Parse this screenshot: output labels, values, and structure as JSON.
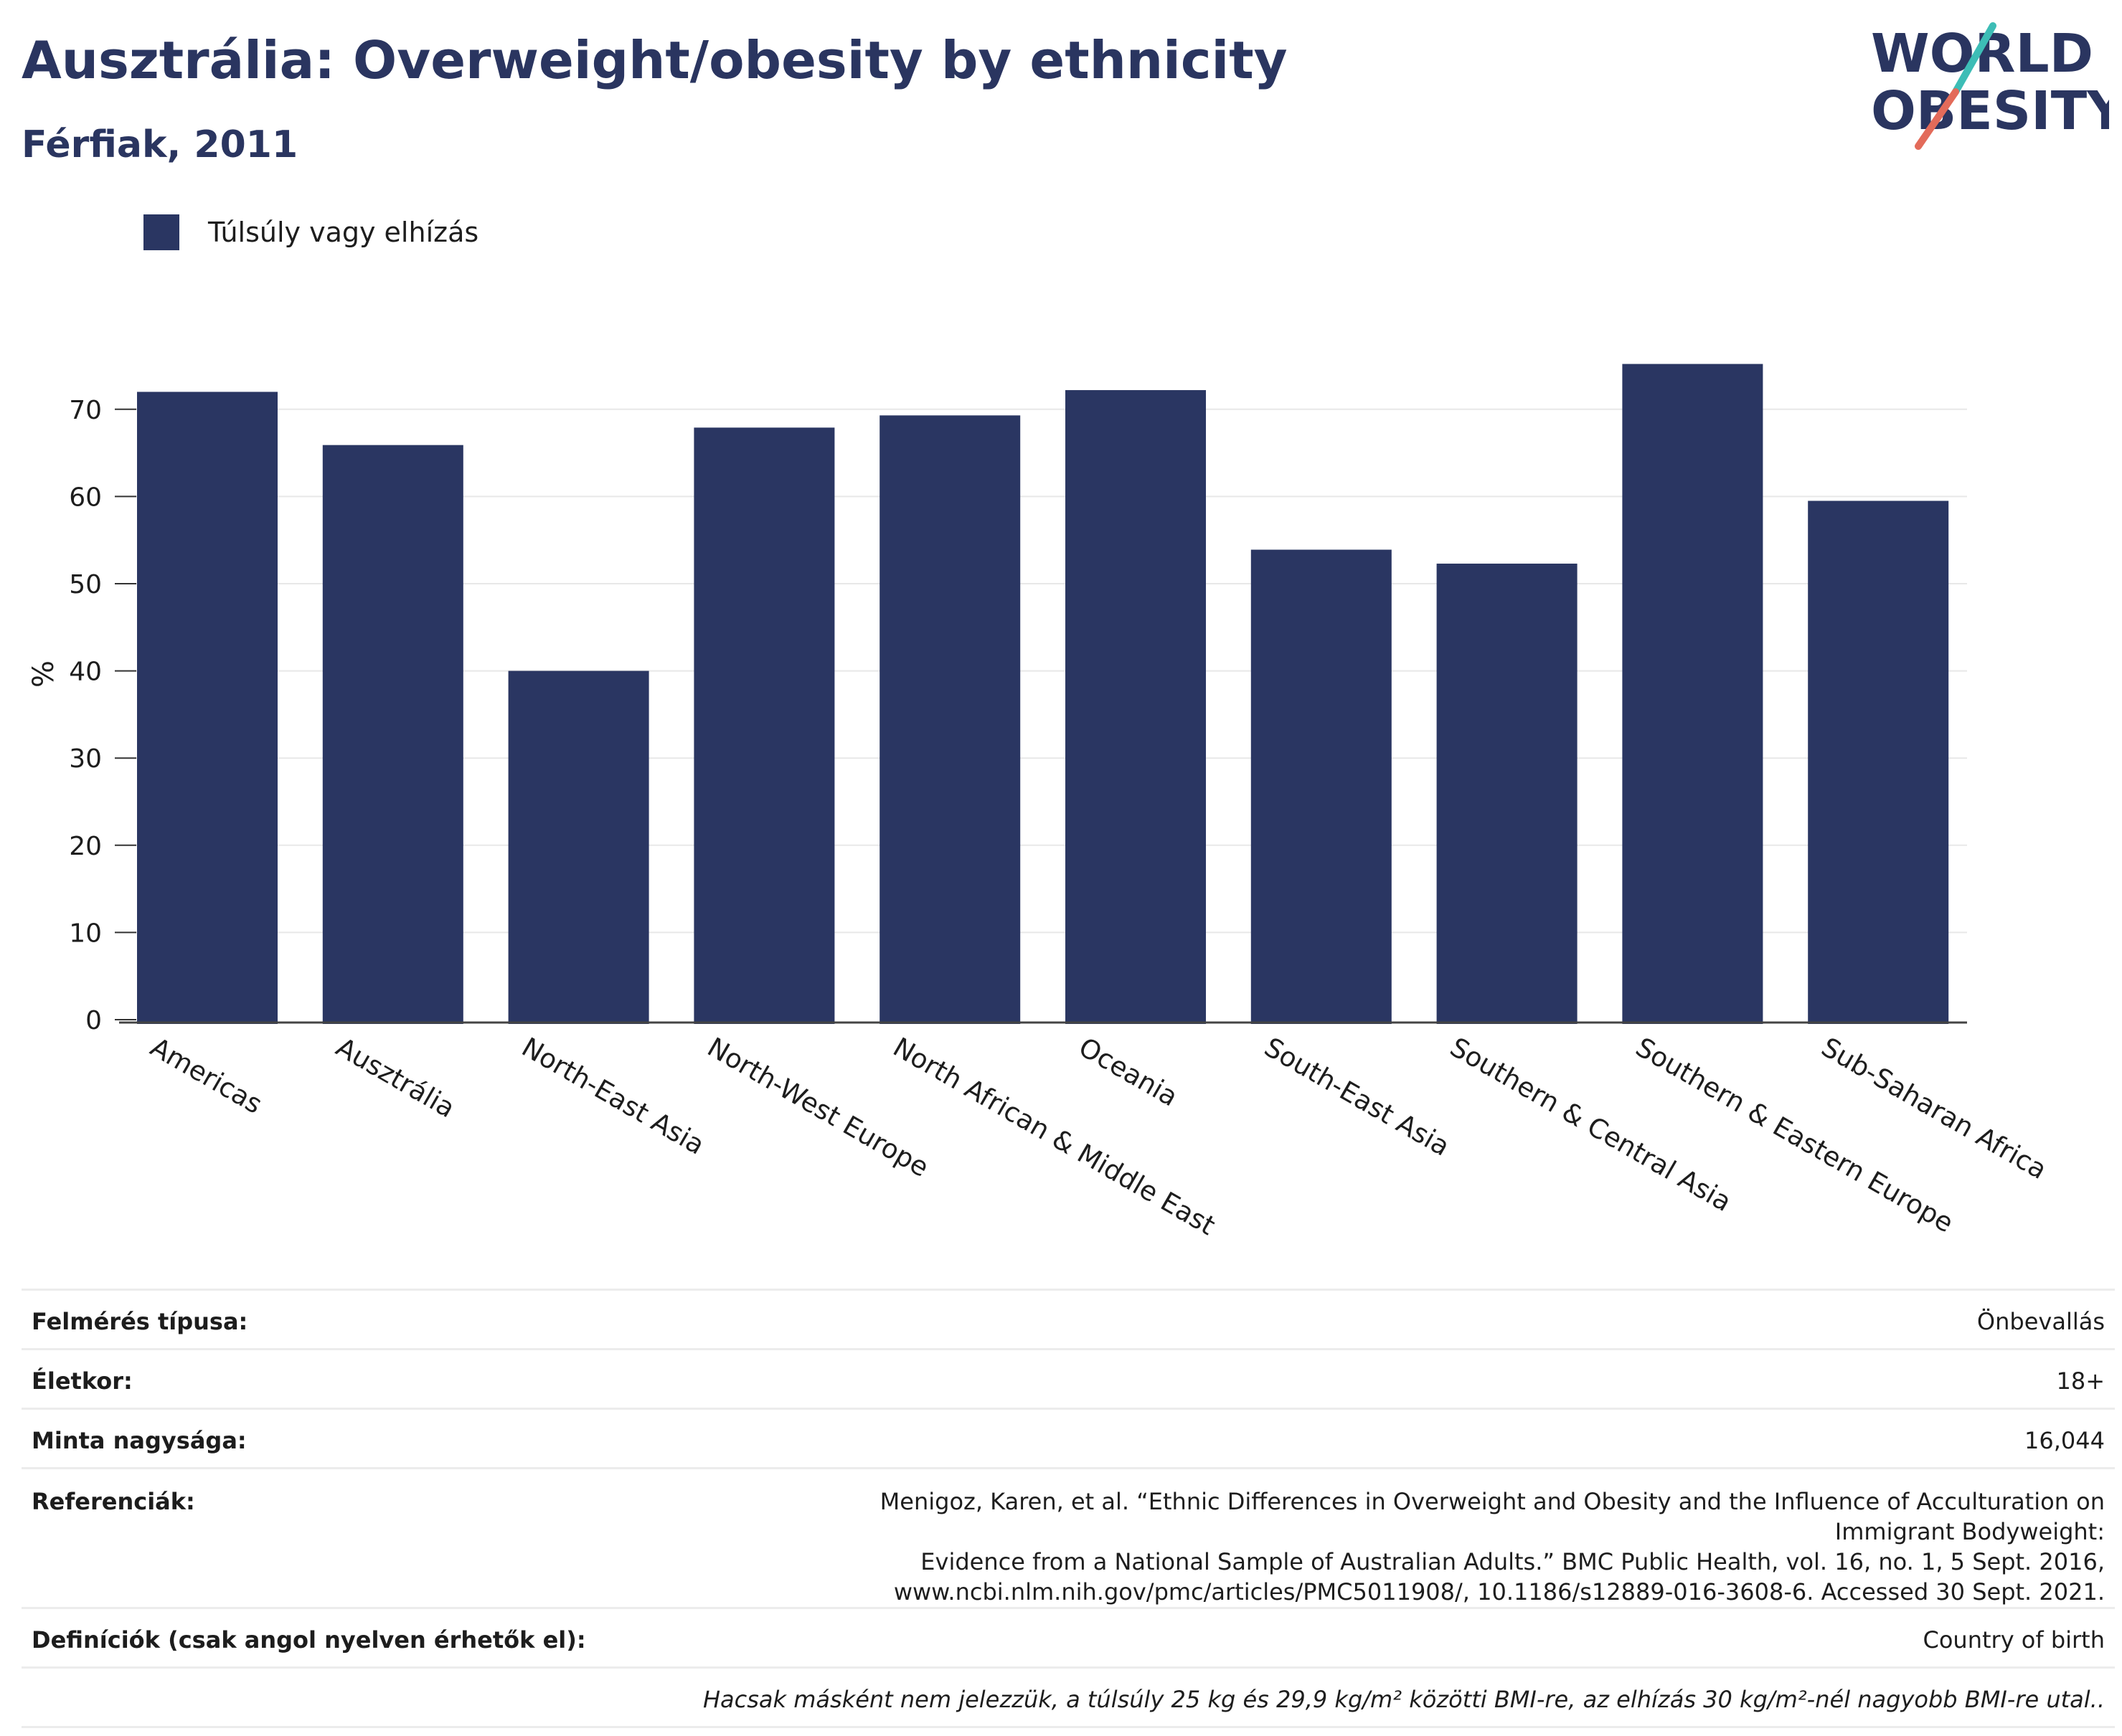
{
  "header": {
    "title": "Ausztrália: Overweight/obesity by ethnicity",
    "subtitle": "Férfiak, 2011"
  },
  "logo": {
    "line1": "WORLD",
    "line2": "OBESITY",
    "name": "world-obesity-logo"
  },
  "colors": {
    "bar": "#2a3662",
    "title": "#2a3560",
    "logo_teal": "#3dbdb6",
    "logo_coral": "#e36b5a"
  },
  "legend": {
    "label": "Túlsúly vagy elhízás"
  },
  "chart_data": {
    "type": "bar",
    "categories": [
      "Americas",
      "Ausztrália",
      "North-East Asia",
      "North-West Europe",
      "North African & Middle East",
      "Oceania",
      "South-East Asia",
      "Southern & Central Asia",
      "Southern & Eastern Europe",
      "Sub-Saharan Africa"
    ],
    "series": [
      {
        "name": "Túlsúly vagy elhízás",
        "values": [
          72,
          65.9,
          40,
          67.9,
          69.3,
          72.2,
          53.9,
          52.3,
          75.2,
          59.5
        ]
      }
    ],
    "ylabel": "%",
    "ylim": [
      0,
      78
    ],
    "yticks": [
      0,
      10,
      20,
      30,
      40,
      50,
      60,
      70
    ],
    "grid": true,
    "legend_position": "top-left"
  },
  "info": {
    "rows": [
      {
        "key": "Felmérés típusa:",
        "value": "Önbevallás"
      },
      {
        "key": "Életkor:",
        "value": "18+"
      },
      {
        "key": "Minta nagysága:",
        "value": "16,044"
      },
      {
        "key": "Referenciák:",
        "value_lines": [
          "Menigoz, Karen, et al. “Ethnic Differences in Overweight and Obesity and the Influence of Acculturation on Immigrant Bodyweight:",
          "Evidence from a National Sample of Australian Adults.” BMC Public Health, vol. 16, no. 1, 5 Sept. 2016,",
          "www.ncbi.nlm.nih.gov/pmc/articles/PMC5011908/, 10.1186/s12889-016-3608-6. Accessed 30 Sept. 2021."
        ]
      },
      {
        "key": "Definíciók (csak angol nyelven érhetők el):",
        "value": "Country of birth"
      }
    ],
    "footnote": "Hacsak másként nem jelezzük, a túlsúly 25 kg és 29,9 kg/m² közötti BMI-re, az elhízás 30 kg/m²-nél nagyobb BMI-re utal.."
  }
}
